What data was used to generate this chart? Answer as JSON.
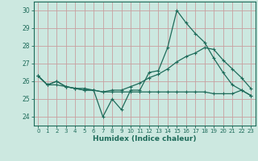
{
  "xlabel": "Humidex (Indice chaleur)",
  "bg_color": "#cce8e0",
  "grid_color": "#c8a0a0",
  "line_color": "#1e6b5a",
  "x": [
    0,
    1,
    2,
    3,
    4,
    5,
    6,
    7,
    8,
    9,
    10,
    11,
    12,
    13,
    14,
    15,
    16,
    17,
    18,
    19,
    20,
    21,
    22,
    23
  ],
  "line1": [
    26.3,
    25.8,
    26.0,
    25.7,
    25.6,
    25.6,
    25.5,
    24.0,
    25.0,
    24.4,
    25.5,
    25.5,
    26.5,
    26.6,
    27.9,
    30.0,
    29.3,
    28.7,
    28.2,
    27.3,
    26.5,
    25.8,
    25.5,
    25.2
  ],
  "line2": [
    26.3,
    25.8,
    26.0,
    25.7,
    25.6,
    25.5,
    25.5,
    25.4,
    25.5,
    25.5,
    25.7,
    25.9,
    26.2,
    26.4,
    26.7,
    27.1,
    27.4,
    27.6,
    27.9,
    27.8,
    27.2,
    26.7,
    26.2,
    25.6
  ],
  "line3": [
    26.3,
    25.8,
    25.8,
    25.7,
    25.6,
    25.5,
    25.5,
    25.4,
    25.4,
    25.4,
    25.4,
    25.4,
    25.4,
    25.4,
    25.4,
    25.4,
    25.4,
    25.4,
    25.4,
    25.3,
    25.3,
    25.3,
    25.5,
    25.2
  ],
  "ylim": [
    23.5,
    30.5
  ],
  "yticks": [
    24,
    25,
    26,
    27,
    28,
    29,
    30
  ],
  "xlim": [
    -0.5,
    23.5
  ],
  "xticks": [
    0,
    1,
    2,
    3,
    4,
    5,
    6,
    7,
    8,
    9,
    10,
    11,
    12,
    13,
    14,
    15,
    16,
    17,
    18,
    19,
    20,
    21,
    22,
    23
  ]
}
